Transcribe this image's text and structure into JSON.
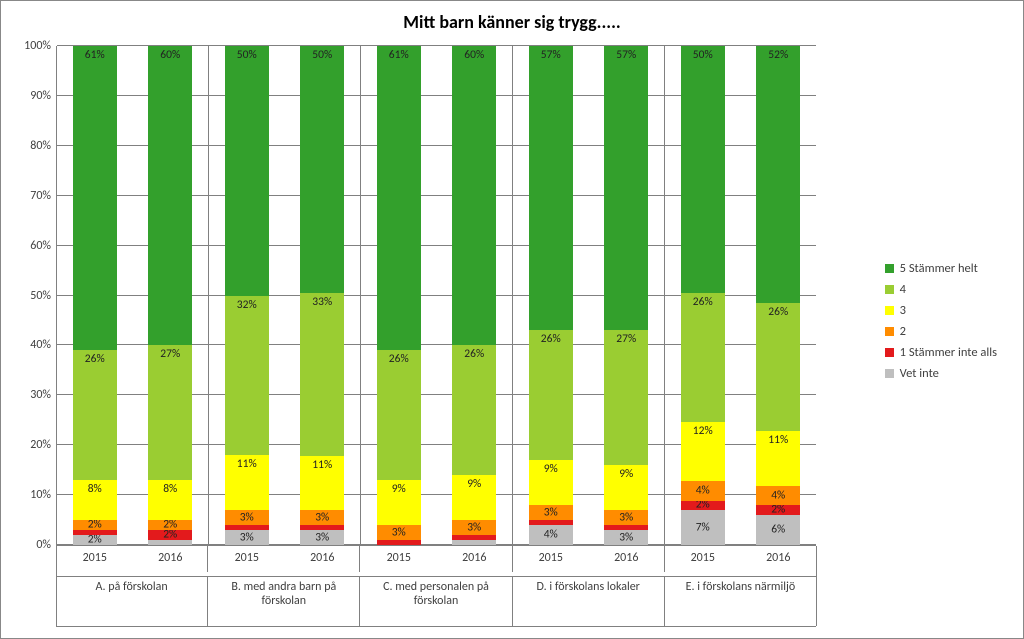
{
  "chart": {
    "type": "stacked-bar-100",
    "title": "Mitt barn känner sig trygg.....",
    "background_color": "#ffffff",
    "grid_color": "#808080",
    "title_fontsize": 18,
    "label_fontsize": 12,
    "y_axis": {
      "min": 0,
      "max": 100,
      "tick_step": 10,
      "ticks": [
        "0%",
        "10%",
        "20%",
        "30%",
        "40%",
        "50%",
        "60%",
        "70%",
        "80%",
        "90%",
        "100%"
      ]
    },
    "series": [
      {
        "key": "s5",
        "label": "5 Stämmer helt",
        "color": "#33a02c"
      },
      {
        "key": "s4",
        "label": "4",
        "color": "#9acd32"
      },
      {
        "key": "s3",
        "label": "3",
        "color": "#ffff00"
      },
      {
        "key": "s2",
        "label": "2",
        "color": "#ff8c00"
      },
      {
        "key": "s1",
        "label": "1 Stämmer inte alls",
        "color": "#e31a1c"
      },
      {
        "key": "vet",
        "label": "Vet inte",
        "color": "#bfbfbf"
      }
    ],
    "label_threshold_percent": 2,
    "groups": [
      {
        "label": "A. på förskolan",
        "bars": [
          {
            "year": "2015",
            "values": {
              "vet": 2,
              "s1": 1,
              "s2": 2,
              "s3": 8,
              "s4": 26,
              "s5": 61
            }
          },
          {
            "year": "2016",
            "values": {
              "vet": 1,
              "s1": 2,
              "s2": 2,
              "s3": 8,
              "s4": 27,
              "s5": 60
            }
          }
        ]
      },
      {
        "label": "B. med andra barn på förskolan",
        "bars": [
          {
            "year": "2015",
            "values": {
              "vet": 3,
              "s1": 1,
              "s2": 3,
              "s3": 11,
              "s4": 32,
              "s5": 50
            }
          },
          {
            "year": "2016",
            "values": {
              "vet": 3,
              "s1": 1,
              "s2": 3,
              "s3": 11,
              "s4": 33,
              "s5": 50
            }
          }
        ]
      },
      {
        "label": "C. med personalen på förskolan",
        "bars": [
          {
            "year": "2015",
            "values": {
              "vet": 0,
              "s1": 1,
              "s2": 3,
              "s3": 9,
              "s4": 26,
              "s5": 61
            }
          },
          {
            "year": "2016",
            "values": {
              "vet": 1,
              "s1": 1,
              "s2": 3,
              "s3": 9,
              "s4": 26,
              "s5": 60
            }
          }
        ]
      },
      {
        "label": "D. i förskolans lokaler",
        "bars": [
          {
            "year": "2015",
            "values": {
              "vet": 4,
              "s1": 1,
              "s2": 3,
              "s3": 9,
              "s4": 26,
              "s5": 57
            }
          },
          {
            "year": "2016",
            "values": {
              "vet": 3,
              "s1": 1,
              "s2": 3,
              "s3": 9,
              "s4": 27,
              "s5": 57
            }
          }
        ]
      },
      {
        "label": "E. i förskolans närmiljö",
        "bars": [
          {
            "year": "2015",
            "values": {
              "vet": 7,
              "s1": 2,
              "s2": 4,
              "s3": 12,
              "s4": 26,
              "s5": 50
            }
          },
          {
            "year": "2016",
            "values": {
              "vet": 6,
              "s1": 2,
              "s2": 4,
              "s3": 11,
              "s4": 26,
              "s5": 52
            }
          }
        ]
      }
    ]
  }
}
